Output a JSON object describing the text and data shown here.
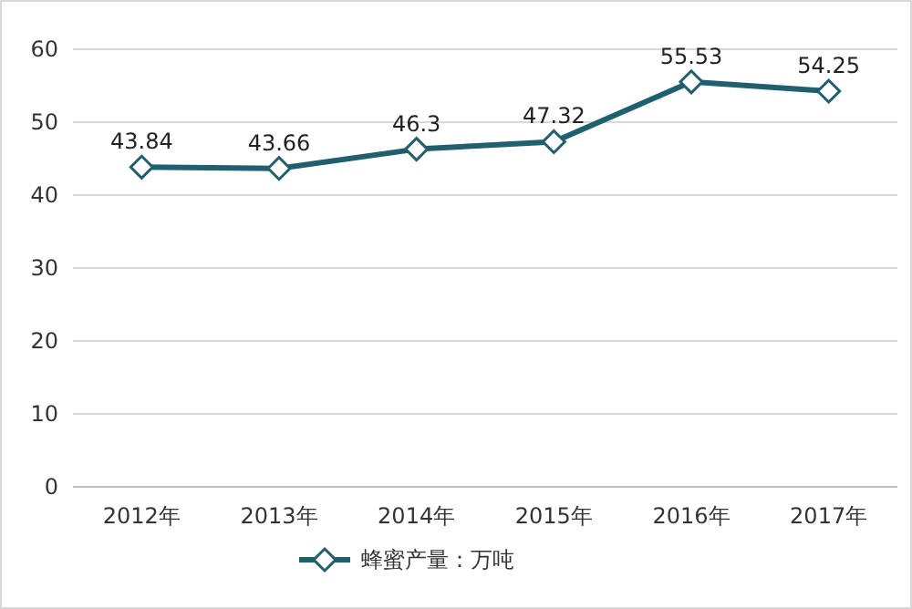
{
  "chart_data": {
    "type": "line",
    "categories": [
      "2012年",
      "2013年",
      "2014年",
      "2015年",
      "2016年",
      "2017年"
    ],
    "series": [
      {
        "name": "蜂蜜产量：万吨",
        "color": "#1f5f6e",
        "values": [
          43.84,
          43.66,
          46.3,
          47.32,
          55.53,
          54.25
        ]
      }
    ],
    "ylim": [
      0,
      60
    ],
    "yticks": [
      0,
      10,
      20,
      30,
      40,
      50,
      60
    ],
    "grid": "y",
    "legend": "bottom",
    "marker": "diamond",
    "data_labels": true
  }
}
